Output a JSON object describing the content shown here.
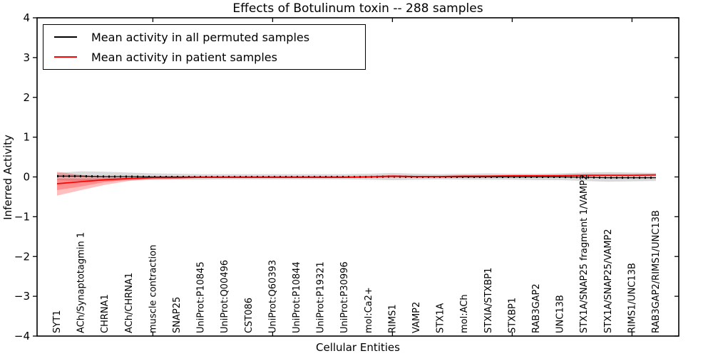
{
  "chart_data": {
    "type": "line",
    "title": "Effects of Botulinum toxin -- 288 samples",
    "xlabel": "Cellular Entities",
    "ylabel": "Inferred Activity",
    "ylim": [
      -4,
      4
    ],
    "grid": false,
    "yticks": [
      "−4",
      "−3",
      "−2",
      "−1",
      "0",
      "1",
      "2",
      "3",
      "4"
    ],
    "ytick_values": [
      -4,
      -3,
      -2,
      -1,
      0,
      1,
      2,
      3,
      4
    ],
    "categories": [
      "SYT1",
      "ACh/Synaptotagmin 1",
      "CHRNA1",
      "ACh/CHRNA1",
      "muscle contraction",
      "SNAP25",
      "UniProt:P10845",
      "UniProt:Q00496",
      "CST086",
      "UniProt:Q60393",
      "UniProt:P10844",
      "UniProt:P19321",
      "UniProt:P30996",
      "mol:Ca2+",
      "RIMS1",
      "VAMP2",
      "STX1A",
      "mol:ACh",
      "STXIA/STXBP1",
      "STXBP1",
      "RAB3GAP2",
      "UNC13B",
      "STX1A/SNAP25 fragment 1/VAMP2",
      "STX1A/SNAP25/VAMP2",
      "RIMS1/UNC13B",
      "RAB3GAP2/RIMS1/UNC13B"
    ],
    "xtick_category_indices": [
      4,
      9,
      14,
      19,
      24
    ],
    "series": [
      {
        "name": "Mean activity in all permuted samples",
        "color": "#000000",
        "marker": "dense-dash",
        "values": [
          0.02,
          0.02,
          0.01,
          0.01,
          0.0,
          0.0,
          0.0,
          0.0,
          0.0,
          0.0,
          0.0,
          0.0,
          0.0,
          0.0,
          0.01,
          0.0,
          0.0,
          0.0,
          0.0,
          0.0,
          0.0,
          0.0,
          -0.01,
          -0.02,
          -0.02,
          -0.02
        ],
        "band": {
          "upper": [
            0.1,
            0.14,
            0.13,
            0.11,
            0.09,
            0.08,
            0.07,
            0.07,
            0.07,
            0.07,
            0.07,
            0.07,
            0.07,
            0.08,
            0.1,
            0.08,
            0.07,
            0.08,
            0.09,
            0.08,
            0.08,
            0.09,
            0.11,
            0.12,
            0.11,
            0.1
          ],
          "lower": [
            -0.08,
            -0.1,
            -0.1,
            -0.09,
            -0.08,
            -0.07,
            -0.07,
            -0.06,
            -0.06,
            -0.06,
            -0.06,
            -0.06,
            -0.06,
            -0.07,
            -0.08,
            -0.07,
            -0.06,
            -0.07,
            -0.07,
            -0.07,
            -0.08,
            -0.08,
            -0.1,
            -0.12,
            -0.11,
            -0.1
          ],
          "color": "#aaaaaa",
          "opacity": 0.45
        }
      },
      {
        "name": "Mean activity in patient samples",
        "color": "#ff0000",
        "marker": "none",
        "values": [
          -0.17,
          -0.12,
          -0.07,
          -0.04,
          -0.02,
          -0.02,
          -0.01,
          -0.01,
          -0.01,
          -0.01,
          -0.01,
          -0.01,
          -0.01,
          0.0,
          0.02,
          0.01,
          0.01,
          0.02,
          0.02,
          0.03,
          0.03,
          0.03,
          0.04,
          0.04,
          0.04,
          0.05
        ],
        "band": {
          "upper": [
            0.13,
            0.05,
            0.0,
            -0.01,
            0.0,
            0.0,
            0.01,
            0.01,
            0.01,
            0.01,
            0.01,
            0.01,
            0.01,
            0.03,
            0.05,
            0.03,
            0.03,
            0.04,
            0.04,
            0.05,
            0.05,
            0.06,
            0.07,
            0.07,
            0.07,
            0.08
          ],
          "lower": [
            -0.47,
            -0.33,
            -0.2,
            -0.1,
            -0.05,
            -0.04,
            -0.03,
            -0.03,
            -0.03,
            -0.03,
            -0.03,
            -0.03,
            -0.03,
            -0.02,
            -0.01,
            -0.01,
            -0.01,
            0.0,
            0.0,
            0.01,
            0.01,
            0.01,
            0.01,
            0.02,
            0.02,
            0.02
          ],
          "color": "#ff0000",
          "opacity": 0.25
        },
        "band_inner": {
          "upper": [
            -0.05,
            -0.05,
            -0.04,
            -0.02,
            -0.01,
            -0.01,
            0.0,
            0.0,
            0.0,
            0.0,
            0.0,
            0.0,
            0.0,
            0.01,
            0.03,
            0.02,
            0.02,
            0.03,
            0.03,
            0.04,
            0.04,
            0.04,
            0.05,
            0.05,
            0.05,
            0.06
          ],
          "lower": [
            -0.33,
            -0.24,
            -0.13,
            -0.07,
            -0.03,
            -0.03,
            -0.02,
            -0.02,
            -0.02,
            -0.02,
            -0.02,
            -0.02,
            -0.02,
            -0.01,
            0.0,
            0.0,
            0.0,
            0.01,
            0.01,
            0.02,
            0.02,
            0.02,
            0.03,
            0.03,
            0.03,
            0.04
          ],
          "color": "#ff0000",
          "opacity": 0.25
        }
      }
    ],
    "legend": {
      "position": "upper left",
      "entries": [
        {
          "label": "Mean activity in all permuted samples",
          "color": "#000000"
        },
        {
          "label": "Mean activity in patient samples",
          "color": "#ff0000"
        }
      ]
    },
    "frame_color": "#000000",
    "background_color": "#ffffff"
  }
}
